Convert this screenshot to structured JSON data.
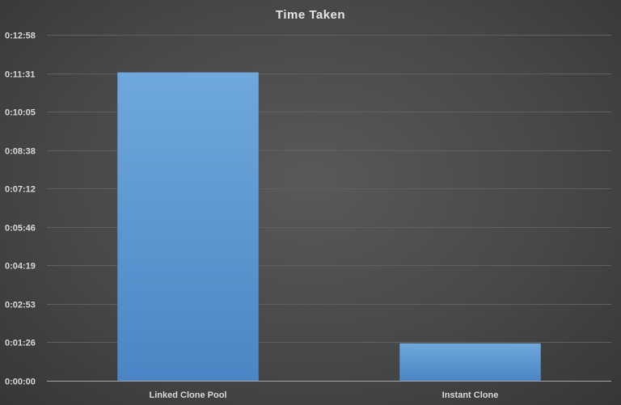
{
  "chart_data": {
    "type": "bar",
    "title": "Time Taken",
    "categories": [
      "Linked Clone Pool",
      "Instant Clone"
    ],
    "series": [
      {
        "values_seconds": [
          693,
          84
        ]
      }
    ],
    "y_tick_labels": [
      "0:00:00",
      "0:01:26",
      "0:02:53",
      "0:04:19",
      "0:05:46",
      "0:07:12",
      "0:08:38",
      "0:10:05",
      "0:11:31",
      "0:12:58"
    ],
    "y_tick_values_seconds": [
      0,
      86.4,
      172.8,
      259.2,
      345.6,
      432,
      518.4,
      604.8,
      691.2,
      777.6
    ],
    "ylim_seconds": [
      0,
      777.6
    ],
    "grid": true,
    "legend": "none",
    "colors": {
      "bar_top": "#6fa8dc",
      "bar_bottom": "#4a86c5"
    }
  }
}
